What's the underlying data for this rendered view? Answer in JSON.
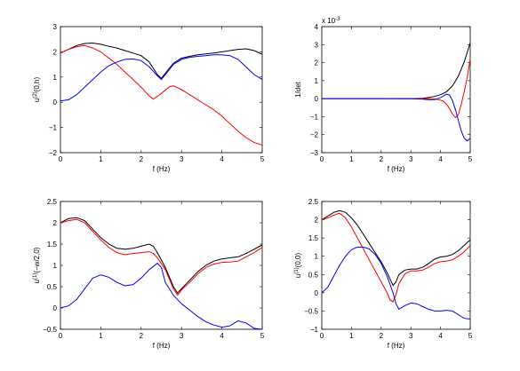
{
  "chart_data": [
    {
      "type": "line",
      "xlabel": "f (Hz)",
      "ylabel_base": "u",
      "ylabel_sup": "(2)",
      "ylabel_tail": "(0,h)",
      "xlim": [
        0,
        5
      ],
      "ylim": [
        -2,
        3
      ],
      "xticks": [
        "0",
        "1",
        "2",
        "3",
        "4",
        "5"
      ],
      "yticks": [
        "-2",
        "-1",
        "0",
        "1",
        "2",
        "3"
      ],
      "exponent_label": "",
      "grid": false,
      "series": [
        {
          "color": "#000000",
          "x": [
            0,
            0.2,
            0.4,
            0.6,
            0.8,
            1.0,
            1.2,
            1.4,
            1.6,
            1.8,
            2.0,
            2.2,
            2.4,
            2.5,
            2.6,
            2.8,
            3.0,
            3.2,
            3.4,
            3.6,
            3.8,
            4.0,
            4.2,
            4.4,
            4.6,
            4.8,
            5.0
          ],
          "y": [
            1.95,
            2.1,
            2.25,
            2.33,
            2.35,
            2.3,
            2.22,
            2.15,
            2.05,
            1.95,
            1.85,
            1.6,
            1.1,
            0.95,
            1.15,
            1.55,
            1.75,
            1.82,
            1.88,
            1.92,
            1.95,
            2.0,
            2.05,
            2.1,
            2.12,
            2.05,
            1.9
          ]
        },
        {
          "color": "#ff0000",
          "x": [
            0,
            0.2,
            0.4,
            0.6,
            0.8,
            1.0,
            1.2,
            1.4,
            1.6,
            1.8,
            2.0,
            2.2,
            2.3,
            2.5,
            2.7,
            2.8,
            3.0,
            3.2,
            3.4,
            3.6,
            3.8,
            4.0,
            4.2,
            4.4,
            4.6,
            4.8,
            5.0
          ],
          "y": [
            1.95,
            2.1,
            2.2,
            2.25,
            2.15,
            2.0,
            1.75,
            1.5,
            1.2,
            0.9,
            0.6,
            0.25,
            0.12,
            0.35,
            0.62,
            0.65,
            0.5,
            0.3,
            0.1,
            -0.1,
            -0.3,
            -0.55,
            -0.85,
            -1.15,
            -1.4,
            -1.6,
            -1.7
          ]
        },
        {
          "color": "#0000ff",
          "x": [
            0,
            0.2,
            0.4,
            0.6,
            0.8,
            1.0,
            1.2,
            1.4,
            1.6,
            1.8,
            2.0,
            2.2,
            2.4,
            2.5,
            2.6,
            2.8,
            3.0,
            3.2,
            3.4,
            3.6,
            3.8,
            4.0,
            4.2,
            4.4,
            4.6,
            4.8,
            5.0
          ],
          "y": [
            0.05,
            0.1,
            0.3,
            0.6,
            0.9,
            1.2,
            1.45,
            1.6,
            1.7,
            1.72,
            1.65,
            1.4,
            1.05,
            0.9,
            1.1,
            1.5,
            1.7,
            1.78,
            1.82,
            1.85,
            1.88,
            1.88,
            1.85,
            1.7,
            1.4,
            1.1,
            0.9
          ]
        }
      ]
    },
    {
      "type": "line",
      "xlabel": "f (Hz)",
      "ylabel_base": "1/det",
      "ylabel_sup": "",
      "ylabel_tail": "",
      "xlim": [
        0,
        5
      ],
      "ylim": [
        -3,
        4
      ],
      "xticks": [
        "0",
        "1",
        "2",
        "3",
        "4",
        "5"
      ],
      "yticks": [
        "-3",
        "-2",
        "-1",
        "0",
        "1",
        "2",
        "3",
        "4"
      ],
      "exponent_label": "x 10",
      "exponent_sup": "-3",
      "grid": false,
      "series": [
        {
          "color": "#000000",
          "x": [
            0,
            1,
            2,
            3,
            3.4,
            3.6,
            3.8,
            4.0,
            4.2,
            4.4,
            4.6,
            4.8,
            5.0
          ],
          "y": [
            0,
            0,
            0,
            0,
            0.02,
            0.06,
            0.12,
            0.22,
            0.38,
            0.7,
            1.25,
            2.05,
            3.1
          ]
        },
        {
          "color": "#ff0000",
          "x": [
            0,
            1,
            2,
            3,
            3.4,
            3.6,
            3.8,
            4.0,
            4.1,
            4.2,
            4.3,
            4.4,
            4.5,
            4.6,
            4.7,
            4.8,
            4.9,
            5.0
          ],
          "y": [
            0,
            0,
            0,
            0,
            0,
            0,
            -0.02,
            -0.08,
            -0.15,
            -0.3,
            -0.55,
            -0.85,
            -1.05,
            -0.9,
            -0.3,
            0.4,
            1.2,
            2.2
          ]
        },
        {
          "color": "#0000ff",
          "x": [
            0,
            1,
            2,
            3,
            3.4,
            3.6,
            3.8,
            4.0,
            4.2,
            4.3,
            4.4,
            4.5,
            4.6,
            4.7,
            4.8,
            4.9,
            5.0
          ],
          "y": [
            0,
            0,
            0,
            -0.01,
            -0.03,
            -0.06,
            -0.05,
            0.05,
            0.25,
            0.2,
            -0.1,
            -0.6,
            -1.2,
            -1.8,
            -2.2,
            -2.35,
            -2.2
          ]
        }
      ]
    },
    {
      "type": "line",
      "xlabel": "f (Hz)",
      "ylabel_base": "u",
      "ylabel_sup": "(1)",
      "ylabel_tail": "(−w/2,0)",
      "xlim": [
        0,
        5
      ],
      "ylim": [
        -0.5,
        2.5
      ],
      "xticks": [
        "0",
        "1",
        "2",
        "3",
        "4",
        "5"
      ],
      "yticks": [
        "-0.5",
        "0",
        "0.5",
        "1",
        "1.5",
        "2",
        "2.5"
      ],
      "exponent_label": "",
      "grid": false,
      "series": [
        {
          "color": "#000000",
          "x": [
            0,
            0.2,
            0.4,
            0.6,
            0.8,
            1.0,
            1.2,
            1.4,
            1.6,
            1.8,
            2.0,
            2.2,
            2.3,
            2.4,
            2.6,
            2.8,
            2.9,
            3.0,
            3.2,
            3.4,
            3.6,
            3.8,
            4.0,
            4.2,
            4.4,
            4.6,
            4.8,
            5.0
          ],
          "y": [
            2.0,
            2.1,
            2.12,
            2.05,
            1.85,
            1.65,
            1.5,
            1.4,
            1.38,
            1.4,
            1.45,
            1.5,
            1.45,
            1.3,
            0.95,
            0.5,
            0.35,
            0.45,
            0.65,
            0.85,
            1.0,
            1.1,
            1.15,
            1.18,
            1.2,
            1.28,
            1.38,
            1.48
          ]
        },
        {
          "color": "#ff0000",
          "x": [
            0,
            0.2,
            0.4,
            0.6,
            0.8,
            1.0,
            1.2,
            1.4,
            1.6,
            1.8,
            2.0,
            2.2,
            2.3,
            2.4,
            2.6,
            2.8,
            2.9,
            3.0,
            3.2,
            3.4,
            3.6,
            3.8,
            4.0,
            4.2,
            4.4,
            4.6,
            4.8,
            5.0
          ],
          "y": [
            2.0,
            2.05,
            2.08,
            2.0,
            1.8,
            1.6,
            1.42,
            1.3,
            1.25,
            1.28,
            1.3,
            1.32,
            1.28,
            1.18,
            0.9,
            0.45,
            0.3,
            0.42,
            0.6,
            0.8,
            0.95,
            1.03,
            1.07,
            1.08,
            1.1,
            1.2,
            1.3,
            1.42
          ]
        },
        {
          "color": "#0000ff",
          "x": [
            0,
            0.2,
            0.4,
            0.6,
            0.8,
            1.0,
            1.2,
            1.4,
            1.6,
            1.8,
            2.0,
            2.2,
            2.4,
            2.5,
            2.6,
            2.8,
            3.0,
            3.2,
            3.4,
            3.6,
            3.8,
            4.0,
            4.2,
            4.4,
            4.6,
            4.8,
            5.0
          ],
          "y": [
            0.0,
            0.05,
            0.2,
            0.45,
            0.7,
            0.78,
            0.72,
            0.6,
            0.52,
            0.55,
            0.7,
            0.9,
            1.05,
            0.95,
            0.6,
            0.3,
            0.1,
            -0.05,
            -0.2,
            -0.32,
            -0.4,
            -0.45,
            -0.42,
            -0.3,
            -0.35,
            -0.48,
            -0.5
          ]
        }
      ]
    },
    {
      "type": "line",
      "xlabel": "f (Hz)",
      "ylabel_base": "u",
      "ylabel_sup": "(1)",
      "ylabel_tail": "(0,0)",
      "xlim": [
        0,
        5
      ],
      "ylim": [
        -1,
        2.5
      ],
      "xticks": [
        "0",
        "1",
        "2",
        "3",
        "4",
        "5"
      ],
      "yticks": [
        "-1",
        "-0.5",
        "0",
        "0.5",
        "1",
        "1.5",
        "2",
        "2.5"
      ],
      "exponent_label": "",
      "grid": false,
      "series": [
        {
          "color": "#000000",
          "x": [
            0,
            0.2,
            0.4,
            0.6,
            0.8,
            1.0,
            1.2,
            1.4,
            1.6,
            1.8,
            2.0,
            2.2,
            2.4,
            2.5,
            2.6,
            2.8,
            3.0,
            3.2,
            3.4,
            3.6,
            3.8,
            4.0,
            4.2,
            4.4,
            4.6,
            4.8,
            5.0
          ],
          "y": [
            2.0,
            2.1,
            2.2,
            2.25,
            2.2,
            2.05,
            1.85,
            1.6,
            1.35,
            1.1,
            0.85,
            0.55,
            0.2,
            0.3,
            0.5,
            0.62,
            0.65,
            0.65,
            0.7,
            0.8,
            0.92,
            0.98,
            1.0,
            1.05,
            1.15,
            1.3,
            1.45
          ]
        },
        {
          "color": "#ff0000",
          "x": [
            0,
            0.2,
            0.4,
            0.6,
            0.8,
            1.0,
            1.2,
            1.4,
            1.6,
            1.8,
            2.0,
            2.2,
            2.3,
            2.4,
            2.5,
            2.6,
            2.8,
            3.0,
            3.2,
            3.4,
            3.6,
            3.8,
            4.0,
            4.2,
            4.4,
            4.6,
            4.8,
            5.0
          ],
          "y": [
            2.0,
            2.05,
            2.12,
            2.18,
            2.05,
            1.8,
            1.5,
            1.2,
            0.9,
            0.6,
            0.3,
            0.0,
            -0.2,
            -0.25,
            -0.05,
            0.25,
            0.52,
            0.6,
            0.6,
            0.62,
            0.7,
            0.8,
            0.85,
            0.87,
            0.9,
            1.0,
            1.12,
            1.3
          ]
        },
        {
          "color": "#0000ff",
          "x": [
            0,
            0.2,
            0.4,
            0.6,
            0.8,
            1.0,
            1.2,
            1.4,
            1.6,
            1.8,
            2.0,
            2.2,
            2.4,
            2.5,
            2.6,
            2.8,
            3.0,
            3.2,
            3.4,
            3.6,
            3.8,
            4.0,
            4.2,
            4.4,
            4.6,
            4.8,
            5.0
          ],
          "y": [
            0.0,
            0.15,
            0.45,
            0.75,
            1.0,
            1.18,
            1.25,
            1.25,
            1.2,
            1.05,
            0.8,
            0.45,
            0.0,
            -0.3,
            -0.45,
            -0.35,
            -0.28,
            -0.3,
            -0.38,
            -0.45,
            -0.5,
            -0.5,
            -0.48,
            -0.5,
            -0.6,
            -0.7,
            -0.72
          ]
        }
      ]
    }
  ]
}
